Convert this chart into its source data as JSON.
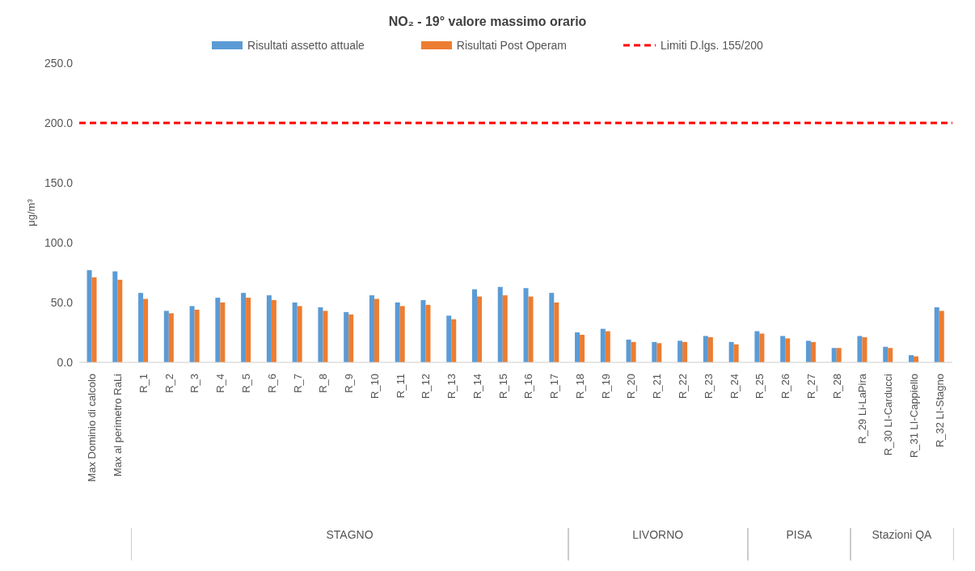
{
  "chart_data": {
    "type": "bar",
    "title": "NO₂ - 19°  valore massimo orario",
    "ylabel": "μg/m³",
    "categories": [
      "Max Dominio di calcolo",
      "Max al perimetro RaLi",
      "R_1",
      "R_2",
      "R_3",
      "R_4",
      "R_5",
      "R_6",
      "R_7",
      "R_8",
      "R_9",
      "R_10",
      "R_11",
      "R_12",
      "R_13",
      "R_14",
      "R_15",
      "R_16",
      "R_17",
      "R_18",
      "R_19",
      "R_20",
      "R_21",
      "R_22",
      "R_23",
      "R_24",
      "R_25",
      "R_26",
      "R_27",
      "R_28",
      "R_29 Li-LaPira",
      "R_30 LI-Carducci",
      "R_31 LI-Cappiello",
      "R_32 LI-Stagno"
    ],
    "series": [
      {
        "name": "Risultati assetto attuale",
        "color": "#5b9bd5",
        "values": [
          77,
          76,
          58,
          43,
          47,
          54,
          58,
          56,
          50,
          46,
          42,
          56,
          50,
          52,
          39,
          61,
          63,
          62,
          58,
          25,
          28,
          19,
          17,
          18,
          22,
          17,
          26,
          22,
          18,
          12,
          22,
          13,
          6,
          46
        ]
      },
      {
        "name": "Risultati Post Operam",
        "color": "#ed7d31",
        "values": [
          71,
          69,
          53,
          41,
          44,
          50,
          54,
          52,
          47,
          43,
          40,
          53,
          47,
          48,
          36,
          55,
          56,
          55,
          50,
          23,
          26,
          17,
          16,
          17,
          21,
          15,
          24,
          20,
          17,
          12,
          21,
          12,
          5,
          43
        ]
      }
    ],
    "ref_lines": [
      {
        "axis": "y",
        "value": 200,
        "label": "Limiti D.lgs. 155/200",
        "color": "#ff0000",
        "line_style": "dashed"
      }
    ],
    "annotations": [
      "STAGNO",
      "LIVORNO",
      "PISA",
      "Stazioni QA"
    ],
    "ylim": [
      0,
      250
    ],
    "yticks": [
      {
        "value": 0,
        "label": "0.0"
      },
      {
        "value": 50,
        "label": "50.0"
      },
      {
        "value": 100,
        "label": "100.0"
      },
      {
        "value": 150,
        "label": "150.0"
      },
      {
        "value": 200,
        "label": "200.0"
      },
      {
        "value": 250,
        "label": "250.0"
      }
    ],
    "legend": "top"
  }
}
